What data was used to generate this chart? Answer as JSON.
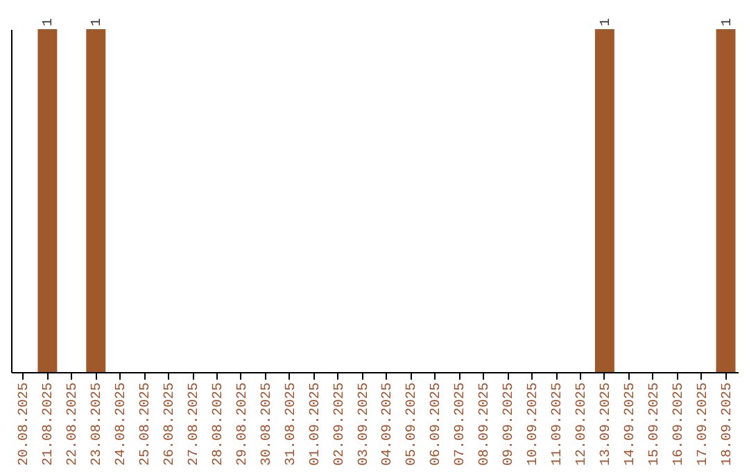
{
  "chart_data": {
    "type": "bar",
    "categories": [
      "20.08.2025",
      "21.08.2025",
      "22.08.2025",
      "23.08.2025",
      "24.08.2025",
      "25.08.2025",
      "26.08.2025",
      "27.08.2025",
      "28.08.2025",
      "29.08.2025",
      "30.08.2025",
      "31.08.2025",
      "01.09.2025",
      "02.09.2025",
      "03.09.2025",
      "04.09.2025",
      "05.09.2025",
      "06.09.2025",
      "07.09.2025",
      "08.09.2025",
      "09.09.2025",
      "10.09.2025",
      "11.09.2025",
      "12.09.2025",
      "13.09.2025",
      "14.09.2025",
      "15.09.2025",
      "16.09.2025",
      "17.09.2025",
      "18.09.2025"
    ],
    "values": [
      0,
      1,
      0,
      1,
      0,
      0,
      0,
      0,
      0,
      0,
      0,
      0,
      0,
      0,
      0,
      0,
      0,
      0,
      0,
      0,
      0,
      0,
      0,
      0,
      1,
      0,
      0,
      0,
      0,
      1
    ],
    "value_labels": [
      null,
      "1",
      null,
      "1",
      null,
      null,
      null,
      null,
      null,
      null,
      null,
      null,
      null,
      null,
      null,
      null,
      null,
      null,
      null,
      null,
      null,
      null,
      null,
      null,
      "1",
      null,
      null,
      null,
      null,
      "1"
    ],
    "color": "#a0592a",
    "ylim": [
      0,
      1
    ],
    "tick_labels": "x",
    "grid": false
  }
}
